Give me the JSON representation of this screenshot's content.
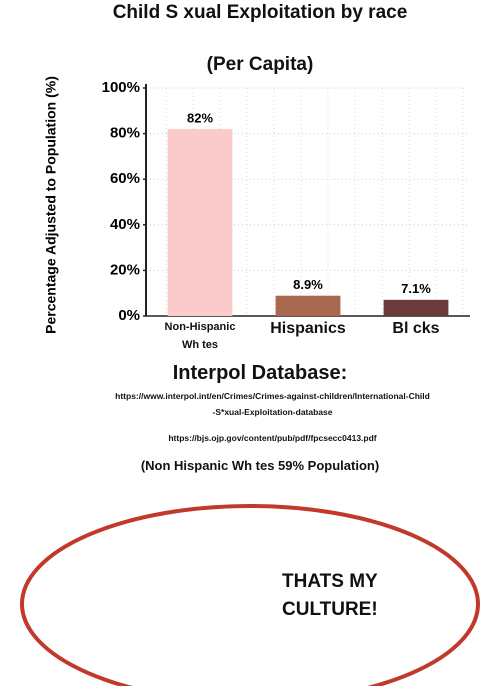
{
  "chart_data": {
    "type": "bar",
    "title": "Child S xual Exploitation by race",
    "subtitle": "(Per Capita)",
    "y_label": "Percentage Adjusted to Population (%)",
    "categories": [
      "Non-Hispanic Wh tes",
      "Hispanics",
      "Bl cks"
    ],
    "values": [
      82,
      8.9,
      7.1
    ],
    "value_labels": [
      "82%",
      "8.9%",
      "7.1%"
    ],
    "colors": [
      "#fbcaca",
      "#a8674f",
      "#6b3a3a"
    ],
    "ylim": [
      0,
      100
    ],
    "yticks": [
      {
        "value": 0,
        "label": "0%"
      },
      {
        "value": 20,
        "label": "20%"
      },
      {
        "value": 40,
        "label": "40%"
      },
      {
        "value": 60,
        "label": "60%"
      },
      {
        "value": 80,
        "label": "80%"
      },
      {
        "value": 100,
        "label": "100%"
      }
    ],
    "grid": true
  },
  "sources": {
    "title": "Interpol Database:",
    "links": [
      "https://www.interpol.int/en/Crimes/Crimes-against-children/International-Child-S*xual-Exploitation-database",
      "https://bjs.ojp.gov/content/pub/pdf/fpcsecc0413.pdf"
    ],
    "note": "(Non Hispanic Wh tes 59% Population)"
  },
  "caption": "THATS MY CULTURE!"
}
